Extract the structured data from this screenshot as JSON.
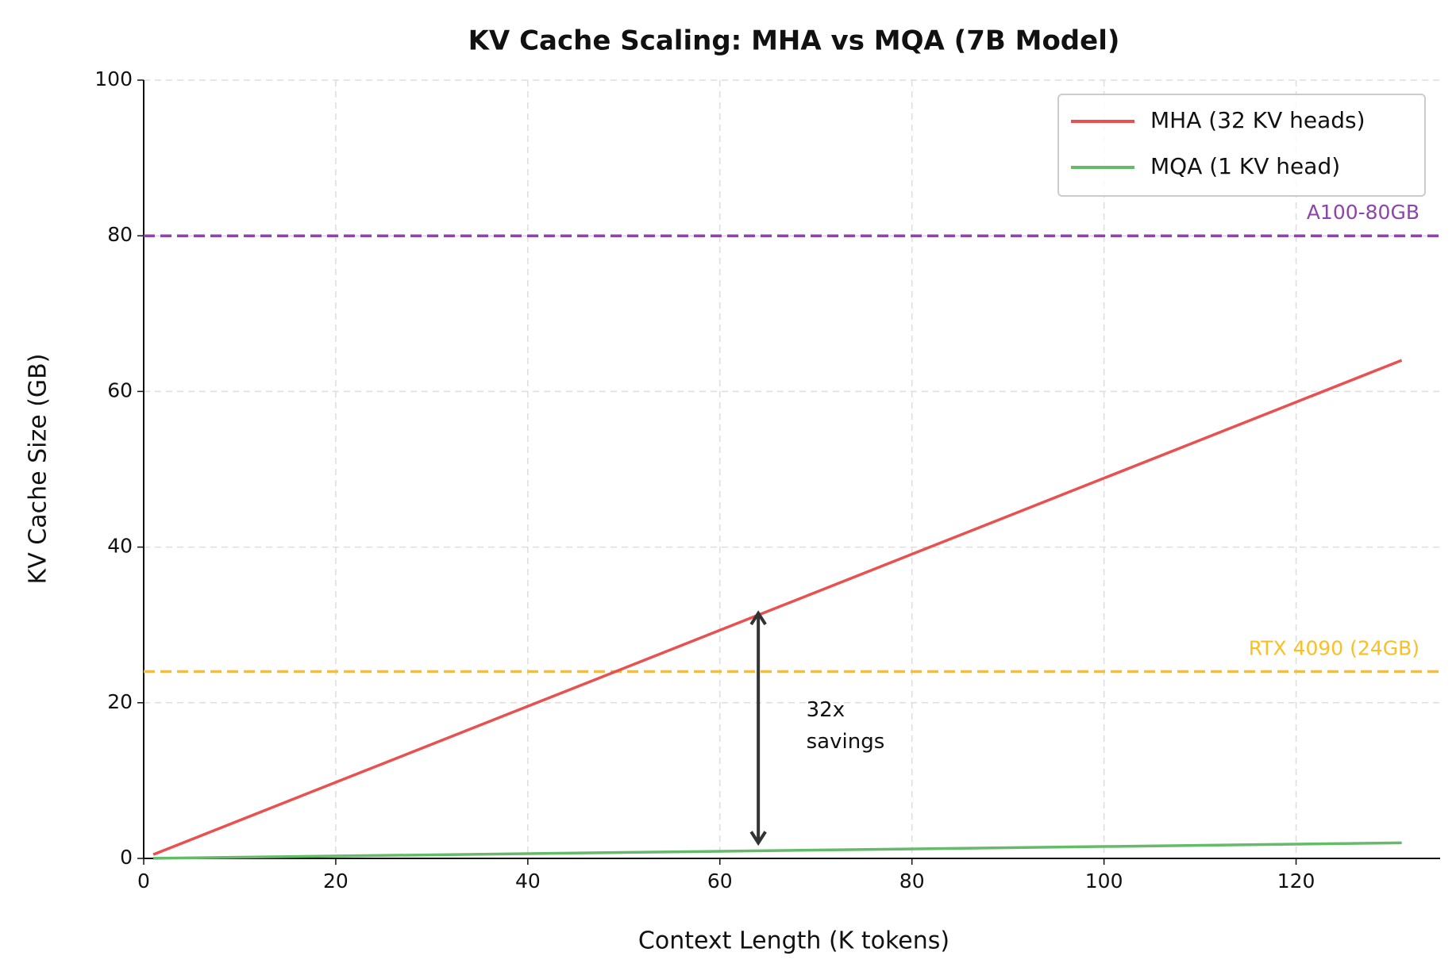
{
  "chart_data": {
    "type": "line",
    "title": "KV Cache Scaling: MHA vs MQA (7B Model)",
    "x_label": "Context Length (K tokens)",
    "y_label": "KV Cache Size (GB)",
    "x": [
      1,
      131
    ],
    "series": [
      {
        "name": "MHA (32 KV heads)",
        "color": "#e8514f",
        "values": [
          0.5,
          64
        ]
      },
      {
        "name": "MQA (1 KV head)",
        "color": "#66bb6a",
        "values": [
          0.016,
          2
        ]
      }
    ],
    "hlines": [
      {
        "label": "A100-80GB",
        "value": 80,
        "color": "#8e44ad"
      },
      {
        "label": "RTX 4090 (24GB)",
        "value": 24,
        "color": "#fbbf24"
      }
    ],
    "annotation": {
      "lines": [
        "32x",
        "savings"
      ],
      "x": 69,
      "y": 19,
      "arrow": {
        "x": 64,
        "from": 2,
        "to": 31.5
      }
    },
    "xlim": [
      0,
      135
    ],
    "xticks": [
      0,
      20,
      40,
      60,
      80,
      100,
      120
    ],
    "ylim": [
      0,
      100
    ],
    "yticks": [
      0,
      20,
      40,
      60,
      80,
      100
    ],
    "grid": true,
    "legend": "upper right"
  }
}
